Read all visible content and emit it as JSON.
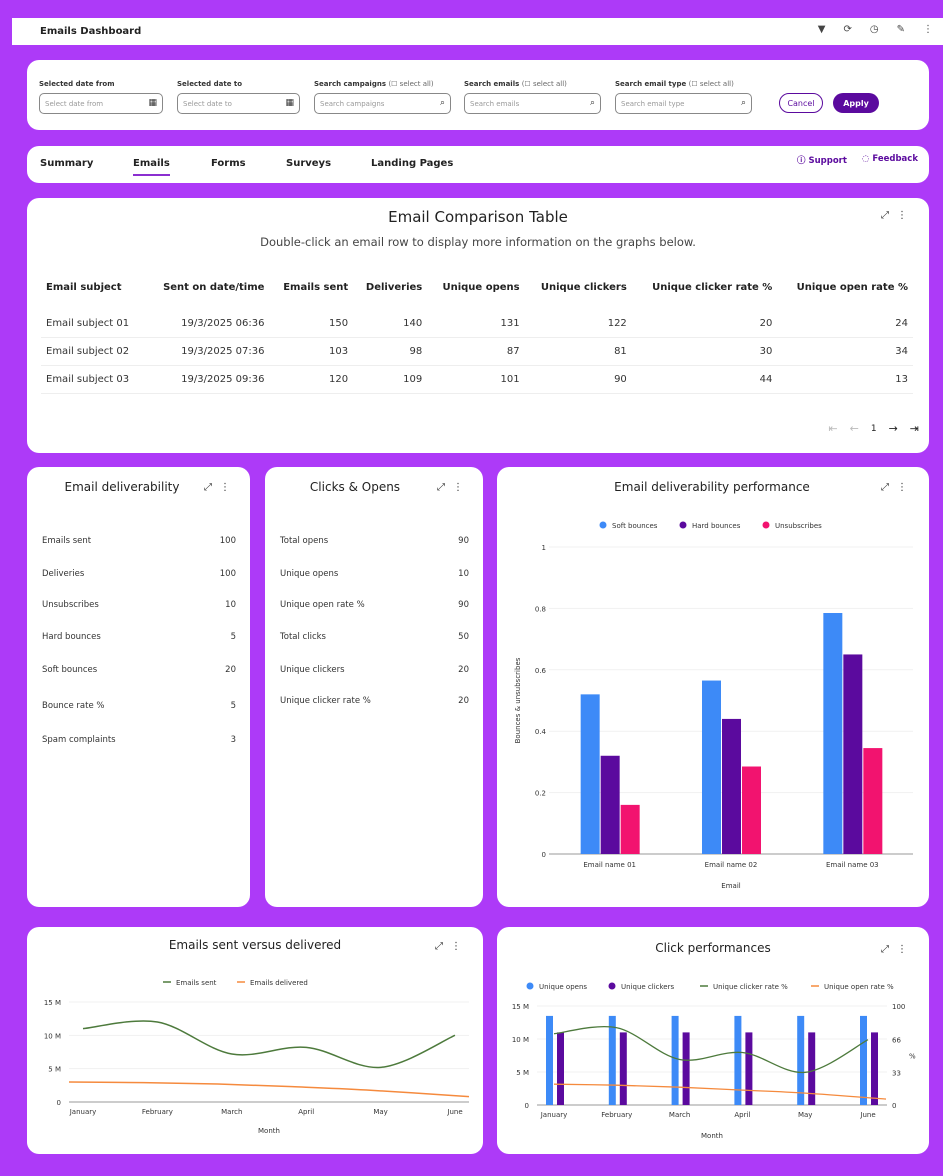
{
  "app": {
    "title": "Emails Dashboard",
    "icons": [
      "filter-icon",
      "refresh-icon",
      "clock-icon",
      "wrench-icon",
      "more-vert-icon"
    ]
  },
  "filters": {
    "date_from": {
      "label": "Selected date from",
      "placeholder": "Select date from"
    },
    "date_to": {
      "label": "Selected date to",
      "placeholder": "Select date to"
    },
    "campaigns": {
      "label": "Search campaigns",
      "select_all": "select all",
      "placeholder": "Search campaigns"
    },
    "emails": {
      "label": "Search emails",
      "select_all": "select all",
      "placeholder": "Search emails"
    },
    "email_type": {
      "label": "Search email type",
      "select_all": "select all",
      "placeholder": "Search email type"
    },
    "cancel": "Cancel",
    "apply": "Apply"
  },
  "tabs": [
    {
      "label": "Summary"
    },
    {
      "label": "Emails",
      "active": true
    },
    {
      "label": "Forms"
    },
    {
      "label": "Surveys"
    },
    {
      "label": "Landing Pages"
    }
  ],
  "links": {
    "support": "Support",
    "feedback": "Feedback"
  },
  "comparison": {
    "title": "Email Comparison Table",
    "subtitle": "Double-click an email row to display more information on the graphs below.",
    "headers": [
      "Email subject",
      "Sent on date/time",
      "Emails sent",
      "Deliveries",
      "Unique opens",
      "Unique clickers",
      "Unique clicker rate %",
      "Unique open rate %"
    ],
    "rows": [
      [
        "Email subject 01",
        "19/3/2025 06:36",
        "150",
        "140",
        "131",
        "122",
        "20",
        "24"
      ],
      [
        "Email subject 02",
        "19/3/2025 07:36",
        "103",
        "98",
        "87",
        "81",
        "30",
        "34"
      ],
      [
        "Email subject 03",
        "19/3/2025 09:36",
        "120",
        "109",
        "101",
        "90",
        "44",
        "13"
      ]
    ],
    "page": "1"
  },
  "deliverability": {
    "title": "Email deliverability",
    "items": [
      [
        "Emails sent",
        "100"
      ],
      [
        "Deliveries",
        "100"
      ],
      [
        "Unsubscribes",
        "10"
      ],
      [
        "Hard bounces",
        "5"
      ],
      [
        "Soft bounces",
        "20"
      ],
      [
        "Bounce rate %",
        "5"
      ],
      [
        "Spam complaints",
        "3"
      ]
    ]
  },
  "clicks_opens": {
    "title": "Clicks & Opens",
    "items": [
      [
        "Total opens",
        "90"
      ],
      [
        "Unique opens",
        "10"
      ],
      [
        "Unique open rate %",
        "90"
      ],
      [
        "Total clicks",
        "50"
      ],
      [
        "Unique clickers",
        "20"
      ],
      [
        "Unique clicker rate %",
        "20"
      ]
    ]
  },
  "colors": {
    "blue": "#3d8af7",
    "purple": "#5b0a9e",
    "pink": "#f2136f",
    "green": "#4d7a3c",
    "orange": "#f58a3d",
    "background": "#ad3af8"
  },
  "chart_data": [
    {
      "type": "bar",
      "title": "Email deliverability performance",
      "xlabel": "Email",
      "ylabel": "Bounces & unsubscribes",
      "ylim": [
        0,
        1
      ],
      "yticks": [
        "0",
        "0.2",
        "0.4",
        "0.6",
        "0.8",
        "1"
      ],
      "legend": "top",
      "categories": [
        "Email name 01",
        "Email name 02",
        "Email name 03"
      ],
      "series": [
        {
          "name": "Soft bounces",
          "values": [
            0.52,
            0.565,
            0.785
          ]
        },
        {
          "name": "Hard bounces",
          "values": [
            0.32,
            0.44,
            0.65
          ]
        },
        {
          "name": "Unsubscribes",
          "values": [
            0.16,
            0.285,
            0.345
          ]
        }
      ]
    },
    {
      "type": "line",
      "title": "Emails sent versus delivered",
      "xlabel": "Month",
      "ylim": [
        0,
        15
      ],
      "yticks": [
        "0",
        "5 M",
        "10 M",
        "15 M"
      ],
      "legend": "top",
      "categories": [
        "January",
        "February",
        "March",
        "April",
        "May",
        "June"
      ],
      "series": [
        {
          "name": "Emails sent",
          "values": [
            11,
            12,
            7.2,
            8.2,
            5.2,
            10
          ]
        },
        {
          "name": "Emails delivered",
          "values": [
            3,
            2.9,
            2.7,
            2.3,
            1.8,
            0.8
          ]
        }
      ]
    },
    {
      "type": "bar+line",
      "title": "Click performances",
      "xlabel": "Month",
      "ylabel_right": "%",
      "ylim": [
        0,
        15
      ],
      "ylim_right": [
        0,
        100
      ],
      "yticks": [
        "0",
        "5 M",
        "10 M",
        "15 M"
      ],
      "yticks_right": [
        "0",
        "33",
        "66",
        "100"
      ],
      "legend": "top",
      "categories": [
        "January",
        "February",
        "March",
        "April",
        "May",
        "June"
      ],
      "series": [
        {
          "name": "Unique opens",
          "values": [
            13.5,
            13.5,
            13.5,
            13.5,
            13.5,
            13.5
          ]
        },
        {
          "name": "Unique clickers",
          "values": [
            11,
            11,
            11,
            11,
            11,
            11
          ]
        },
        {
          "name": "Unique clicker rate %",
          "values": [
            72,
            78,
            46,
            53,
            33,
            66
          ]
        },
        {
          "name": "Unique open rate %",
          "values": [
            21,
            20,
            18,
            15,
            12,
            6
          ]
        }
      ]
    }
  ]
}
